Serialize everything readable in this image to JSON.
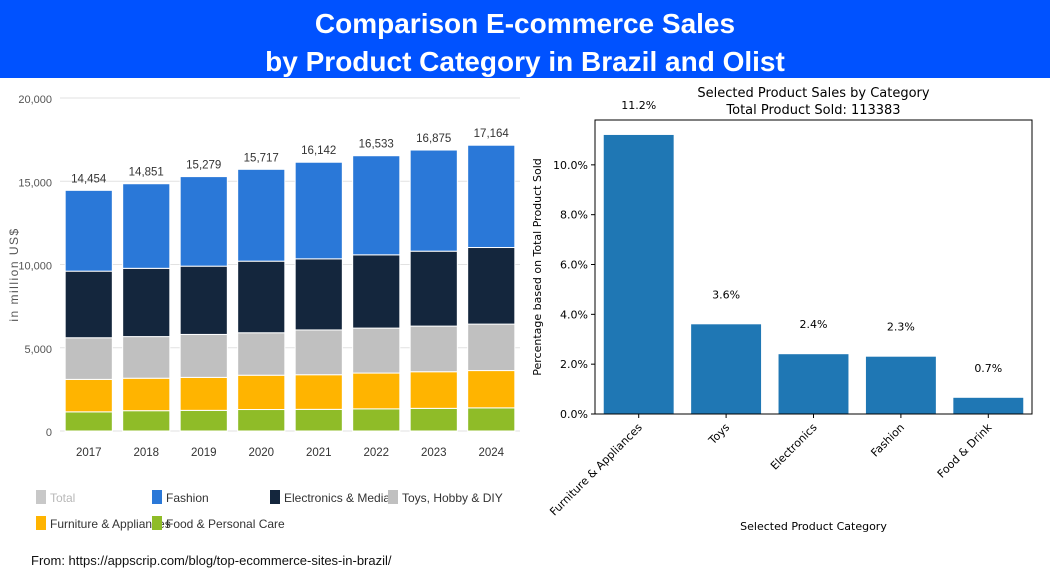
{
  "header": {
    "title_line1": "Comparison E-commerce Sales",
    "title_line2": "by Product Category in Brazil and Olist"
  },
  "footer": {
    "source": "From: https://appscrip.com/blog/top-ecommerce-sites-in-brazil/"
  },
  "colors": {
    "banner": "#0052ff",
    "total": "#c8c8c8",
    "fashion": "#2a78d8",
    "electronics": "#14263d",
    "toys": "#c0c0c0",
    "furniture": "#ffb400",
    "food": "#8fbc28",
    "olist_bar": "#1f77b4"
  },
  "chart_data": [
    {
      "type": "bar",
      "stacked": true,
      "categories": [
        "2017",
        "2018",
        "2019",
        "2020",
        "2021",
        "2022",
        "2023",
        "2024"
      ],
      "totals": [
        14454,
        14851,
        15279,
        15717,
        16142,
        16533,
        16875,
        17164
      ],
      "total_labels": [
        "14,454",
        "14,851",
        "15,279",
        "15,717",
        "16,142",
        "16,533",
        "16,875",
        "17,164"
      ],
      "series": [
        {
          "name": "Food & Personal Care",
          "key": "food",
          "values": [
            1150,
            1220,
            1240,
            1290,
            1300,
            1330,
            1360,
            1390
          ]
        },
        {
          "name": "Furniture & Appliances",
          "key": "furniture",
          "values": [
            1950,
            1950,
            1980,
            2060,
            2080,
            2150,
            2200,
            2240
          ]
        },
        {
          "name": "Toys, Hobby & DIY",
          "key": "toys",
          "values": [
            2500,
            2500,
            2580,
            2550,
            2690,
            2700,
            2740,
            2790
          ]
        },
        {
          "name": "Electronics & Media",
          "key": "electronics",
          "values": [
            4000,
            4100,
            4100,
            4300,
            4270,
            4400,
            4500,
            4600
          ]
        },
        {
          "name": "Fashion",
          "key": "fashion",
          "values": [
            4854,
            5081,
            5379,
            5517,
            5802,
            5953,
            6075,
            6144
          ]
        }
      ],
      "legend": [
        {
          "name": "Total",
          "key": "total"
        },
        {
          "name": "Fashion",
          "key": "fashion"
        },
        {
          "name": "Electronics & Media",
          "key": "electronics"
        },
        {
          "name": "Toys, Hobby & DIY",
          "key": "toys"
        },
        {
          "name": "Furniture & Appliances",
          "key": "furniture"
        },
        {
          "name": "Food & Personal Care",
          "key": "food"
        }
      ],
      "ylabel": "in million US$",
      "ylim": [
        0,
        20000
      ],
      "yticks": [
        0,
        5000,
        10000,
        15000,
        20000
      ],
      "ytick_labels": [
        "0",
        "5,000",
        "10,000",
        "15,000",
        "20,000"
      ],
      "grid": true,
      "legend_position": "bottom"
    },
    {
      "type": "bar",
      "title": "Selected Product Sales by Category",
      "subtitle": "Total Product Sold: 113383",
      "categories": [
        "Furniture & Appliances",
        "Toys",
        "Electronics",
        "Fashion",
        "Food & Drink"
      ],
      "values": [
        11.2,
        3.6,
        2.4,
        2.3,
        0.65
      ],
      "value_labels": [
        "11.2%",
        "3.6%",
        "2.4%",
        "2.3%",
        "0.7%"
      ],
      "xlabel": "Selected Product Category",
      "ylabel": "Percentage based on Total Product Sold",
      "ylim": [
        0,
        11.8
      ],
      "yticks": [
        0,
        2,
        4,
        6,
        8,
        10
      ],
      "ytick_labels": [
        "0.0%",
        "2.0%",
        "4.0%",
        "6.0%",
        "8.0%",
        "10.0%"
      ],
      "grid": false
    }
  ]
}
